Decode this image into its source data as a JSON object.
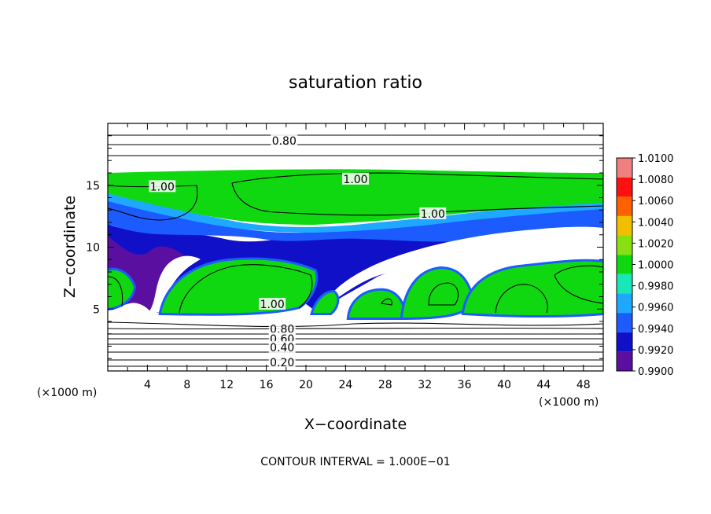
{
  "chart_data": {
    "type": "heatmap",
    "title": "saturation ratio",
    "xlabel": "X−coordinate",
    "ylabel": "Z−coordinate",
    "x_unit": "(×1000 m)",
    "z_unit": "(×1000 m)",
    "xlim": [
      0,
      50
    ],
    "ylim": [
      0,
      20
    ],
    "x_ticks": [
      4,
      8,
      12,
      16,
      20,
      24,
      28,
      32,
      36,
      40,
      44,
      48
    ],
    "y_ticks": [
      5,
      10,
      15
    ],
    "colorbar": {
      "levels": [
        0.99,
        0.992,
        0.994,
        0.996,
        0.998,
        1.0,
        1.002,
        1.004,
        1.006,
        1.008,
        1.01
      ],
      "labels": [
        "0.9900",
        "0.9920",
        "0.9940",
        "0.9960",
        "0.9980",
        "1.0000",
        "1.0020",
        "1.0040",
        "1.0060",
        "1.0080",
        "1.0100"
      ],
      "colors": [
        "#5a0fa0",
        "#1010c8",
        "#1c5cff",
        "#1ea8ff",
        "#18e8b8",
        "#10d810",
        "#88e010",
        "#f0c000",
        "#ff6000",
        "#ff1010",
        "#f08080"
      ]
    },
    "contour_labels": [
      {
        "text": "0.80",
        "x": 17.8,
        "z": 18.6
      },
      {
        "text": "1.00",
        "x": 5.5,
        "z": 14.9
      },
      {
        "text": "1.00",
        "x": 25.0,
        "z": 15.5
      },
      {
        "text": "1.00",
        "x": 32.8,
        "z": 12.7
      },
      {
        "text": "1.00",
        "x": 16.6,
        "z": 5.4
      },
      {
        "text": "0.80",
        "x": 17.6,
        "z": 3.4
      },
      {
        "text": "0.60",
        "x": 17.6,
        "z": 2.6
      },
      {
        "text": "0.40",
        "x": 17.6,
        "z": 1.9
      },
      {
        "text": "0.20",
        "x": 17.6,
        "z": 0.7
      }
    ],
    "contour_interval_label": "CONTOUR INTERVAL = 1.000E−01"
  }
}
